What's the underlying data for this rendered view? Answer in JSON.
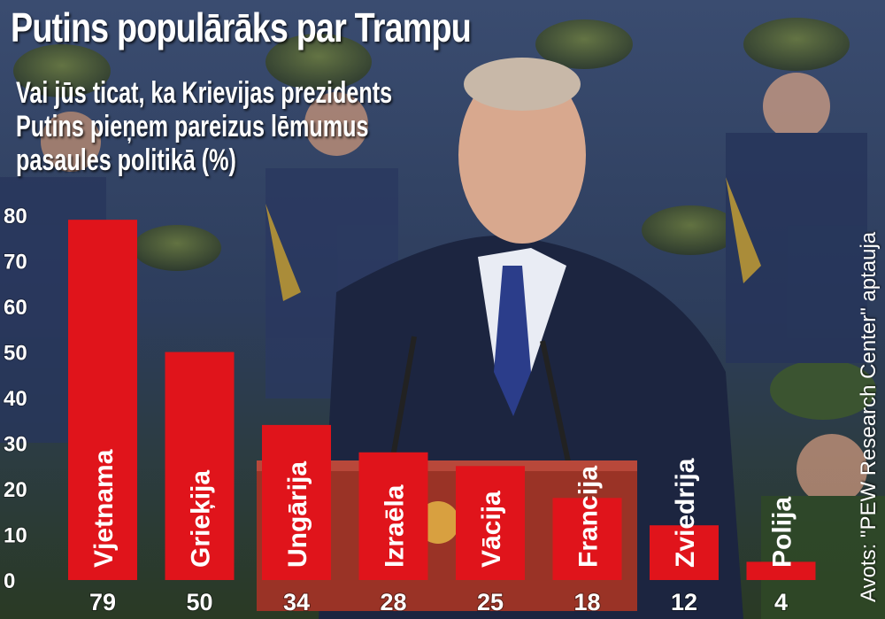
{
  "chart_data": {
    "type": "bar",
    "title": "Putins populārāks par Trampu",
    "subtitle_lines": [
      "Vai jūs ticat, ka Krievijas prezidents",
      "Putins pieņem pareizus lēmumus",
      "pasaules politikā (%)"
    ],
    "categories": [
      "Vjetnama",
      "Grieķija",
      "Ungārija",
      "Izraēla",
      "Vācija",
      "Francija",
      "Zviedrija",
      "Polija"
    ],
    "values": [
      79,
      50,
      34,
      28,
      25,
      18,
      12,
      4
    ],
    "y_ticks": [
      0,
      10,
      20,
      30,
      40,
      50,
      60,
      70,
      80
    ],
    "ylim": [
      0,
      80
    ],
    "grid": false,
    "bar_color": "#e0141b",
    "source": "Avots: \"PEW Research Center\" aptauja"
  }
}
